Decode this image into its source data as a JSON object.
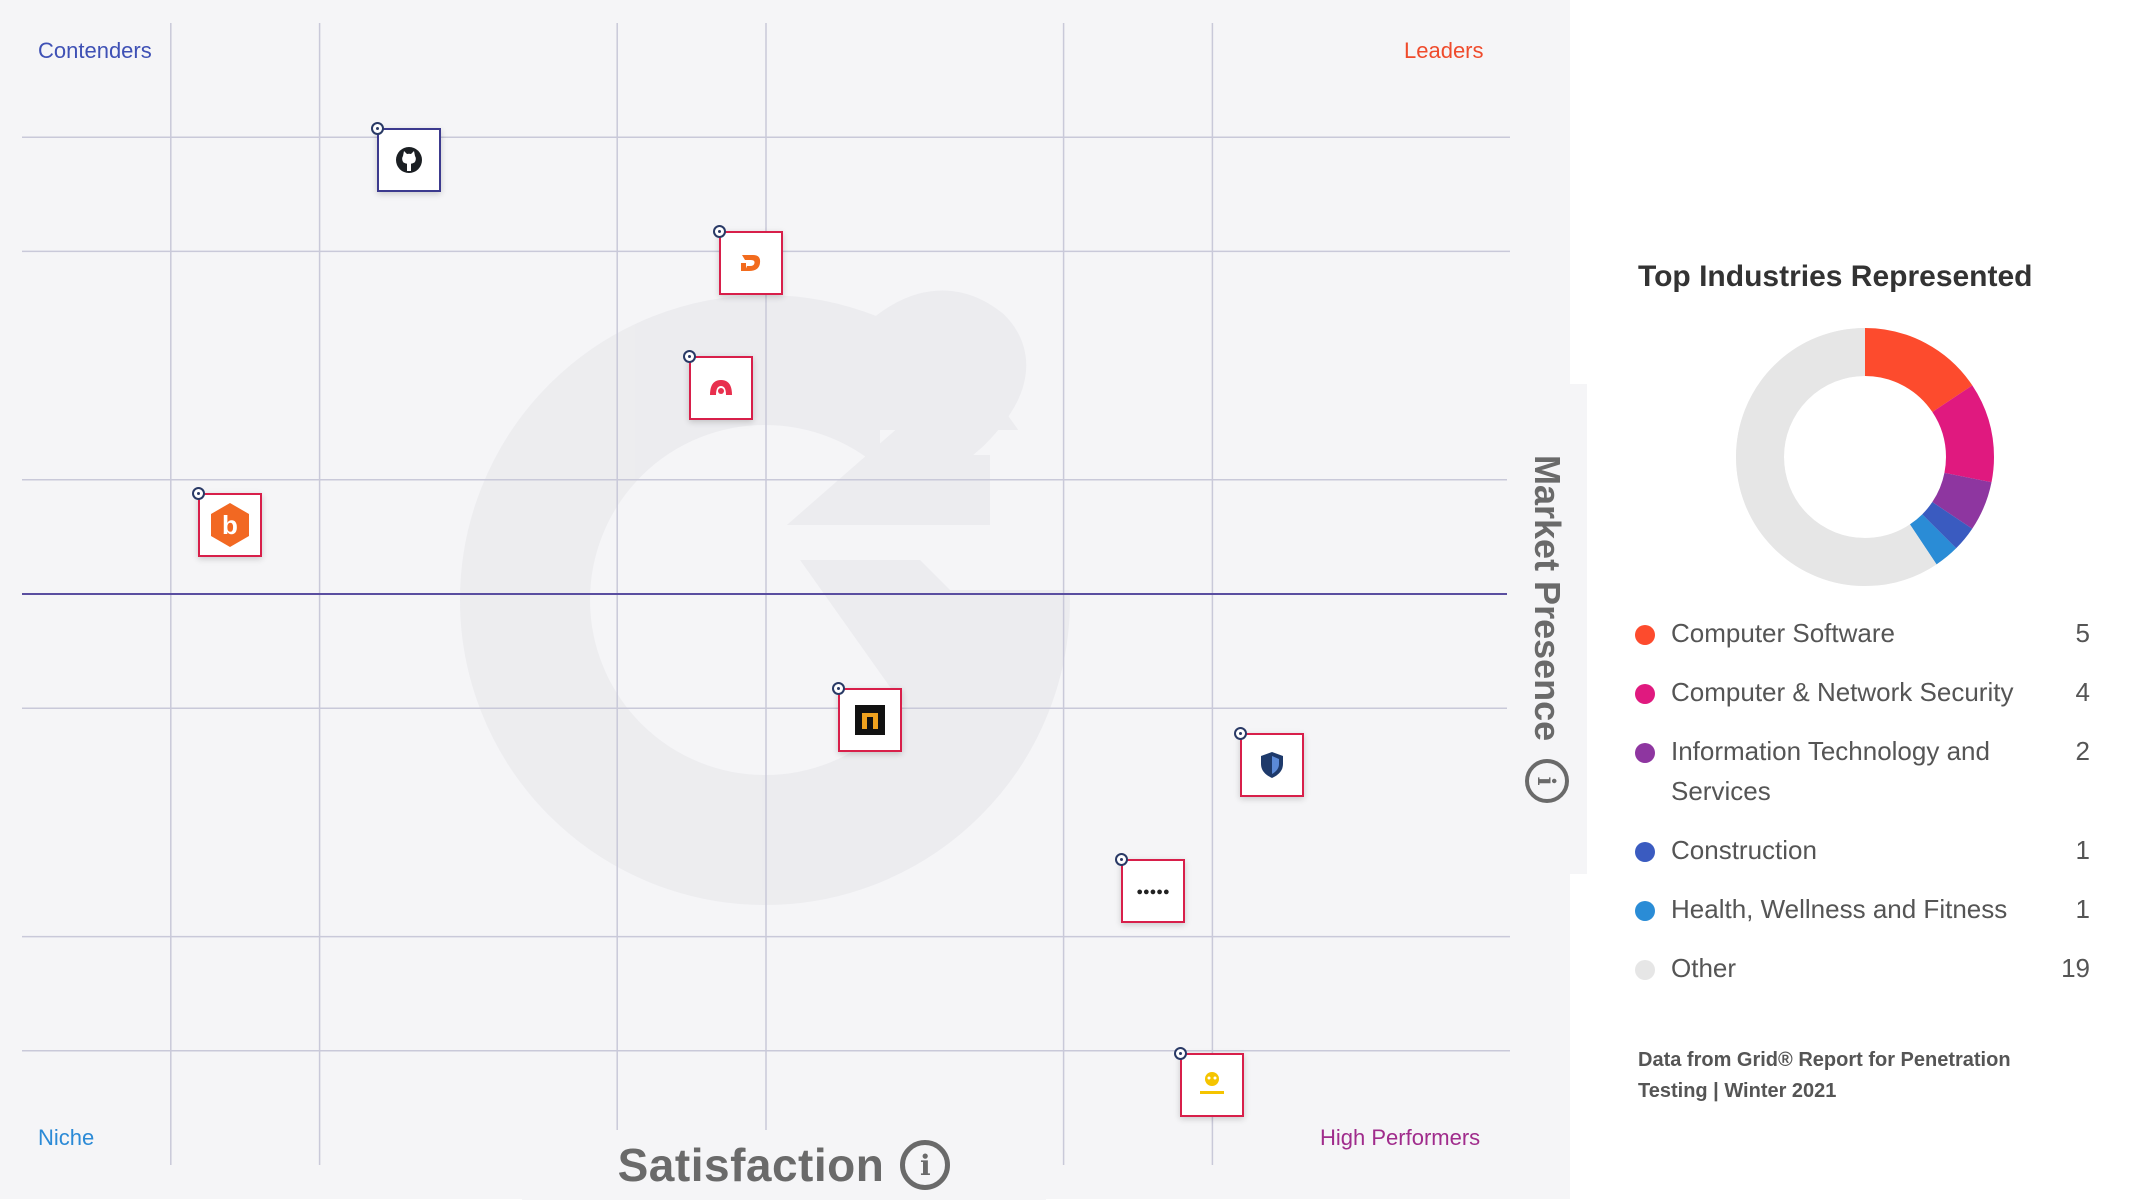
{
  "grid": {
    "quadrants": {
      "contenders": "Contenders",
      "leaders": "Leaders",
      "niche": "Niche",
      "high_performers": "High Performers"
    },
    "x_axis_label": "Satisfaction",
    "y_axis_label": "Market Presence",
    "info_glyph": "i",
    "products": [
      {
        "icon": "github-icon",
        "satisfaction": 26,
        "market_presence": 88,
        "border": "dark"
      },
      {
        "icon": "orange-d-logo-icon",
        "satisfaction": 49,
        "market_presence": 79,
        "border": "red"
      },
      {
        "icon": "red-arch-logo-icon",
        "satisfaction": 47,
        "market_presence": 68,
        "border": "red"
      },
      {
        "icon": "bugcrowd-b-hexagon-icon",
        "satisfaction": 14,
        "market_presence": 56,
        "border": "red"
      },
      {
        "icon": "dark-square-logo-icon",
        "satisfaction": 57,
        "market_presence": 39,
        "border": "red"
      },
      {
        "icon": "blue-shield-icon",
        "satisfaction": 84,
        "market_presence": 35,
        "border": "red"
      },
      {
        "icon": "wordmark-logo-icon",
        "satisfaction": 76,
        "market_presence": 24,
        "border": "red"
      },
      {
        "icon": "intruder-logo-icon",
        "satisfaction": 80,
        "market_presence": 7,
        "border": "red"
      }
    ]
  },
  "industries": {
    "title": "Top Industries Represented",
    "source_note": "Data from Grid® Report for Penetration Testing | Winter 2021"
  },
  "chart_data": [
    {
      "type": "scatter",
      "title": "",
      "xlabel": "Satisfaction",
      "ylabel": "Market Presence",
      "xlim": [
        0,
        100
      ],
      "ylim": [
        0,
        100
      ],
      "grid": true,
      "quadrant_labels": [
        "Contenders",
        "Leaders",
        "Niche",
        "High Performers"
      ],
      "x": [
        26,
        49,
        47,
        14,
        57,
        84,
        76,
        80
      ],
      "y": [
        88,
        79,
        68,
        56,
        39,
        35,
        24,
        7
      ]
    },
    {
      "type": "pie",
      "title": "Top Industries Represented",
      "categories": [
        "Computer Software",
        "Computer & Network Security",
        "Information Technology and Services",
        "Construction",
        "Health, Wellness and Fitness",
        "Other"
      ],
      "values": [
        5,
        4,
        2,
        1,
        1,
        19
      ],
      "colors": [
        "#fd4b2d",
        "#e0197f",
        "#8e36a0",
        "#3a5bc0",
        "#2a8cd6",
        "#e6e6e6"
      ],
      "legend_position": "bottom"
    }
  ]
}
